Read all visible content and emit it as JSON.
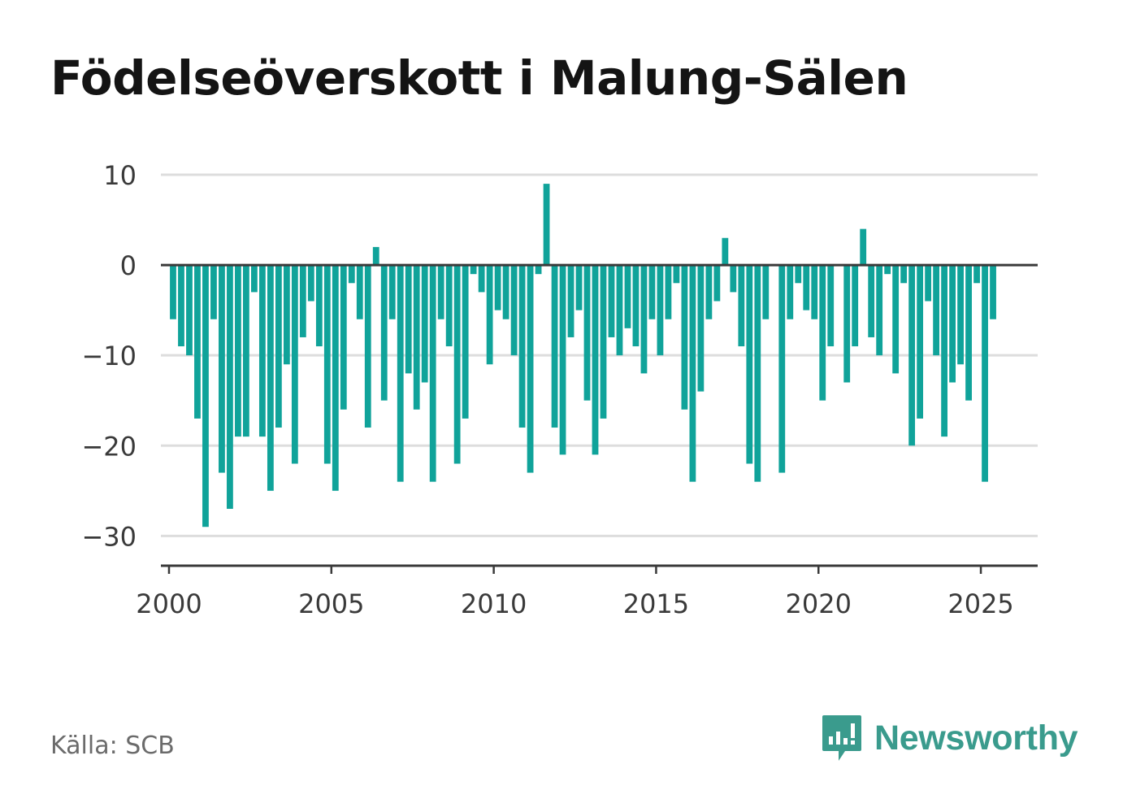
{
  "title": "Födelseöverskott i Malung-Sälen",
  "source": "Källa: SCB",
  "brand": {
    "name": "Newsworthy",
    "icon": "newsworthy-logo-icon"
  },
  "colors": {
    "bar": "#10a39a",
    "title": "#141414",
    "axis": "#3a3a3a",
    "grid": "#dddddd",
    "brand": "#3a9b8d",
    "source": "#6b6b6b"
  },
  "chart_data": {
    "type": "bar",
    "title": "Födelseöverskott i Malung-Sälen",
    "xlabel": "",
    "ylabel": "",
    "ylim": [
      -33.3,
      10
    ],
    "xlim": [
      1999.75,
      2026.75
    ],
    "yticks": [
      10,
      0,
      -10,
      -20,
      -30
    ],
    "ytick_labels": [
      "10",
      "0",
      "−10",
      "−20",
      "−30"
    ],
    "xticks": [
      2000,
      2005,
      2010,
      2015,
      2020,
      2025
    ],
    "xtick_labels": [
      "2000",
      "2005",
      "2010",
      "2015",
      "2020",
      "2025"
    ],
    "grid": true,
    "legend": "none",
    "frequency": "quarterly",
    "start": "2000 Q1",
    "end": "2025 Q2",
    "values": [
      -6,
      -9,
      -10,
      -17,
      -29,
      -6,
      -23,
      -27,
      -19,
      -19,
      -3,
      -19,
      -25,
      -18,
      -11,
      -22,
      -8,
      -4,
      -9,
      -22,
      -25,
      -16,
      -2,
      -6,
      -18,
      2,
      -15,
      -6,
      -24,
      -12,
      -16,
      -13,
      -24,
      -6,
      -9,
      -22,
      -17,
      -1,
      -3,
      -11,
      -5,
      -6,
      -10,
      -18,
      -23,
      -1,
      9,
      -18,
      -21,
      -8,
      -5,
      -15,
      -21,
      -17,
      -8,
      -10,
      -7,
      -9,
      -12,
      -6,
      -10,
      -6,
      -2,
      -16,
      -24,
      -14,
      -6,
      -4,
      3,
      -3,
      -9,
      -22,
      -24,
      -6,
      0,
      -23,
      -6,
      -2,
      -5,
      -6,
      -15,
      -9,
      0,
      -13,
      -9,
      4,
      -8,
      -10,
      -1,
      -12,
      -2,
      -20,
      -17,
      -4,
      -10,
      -19,
      -13,
      -11,
      -15,
      -2,
      -24,
      -6
    ]
  }
}
